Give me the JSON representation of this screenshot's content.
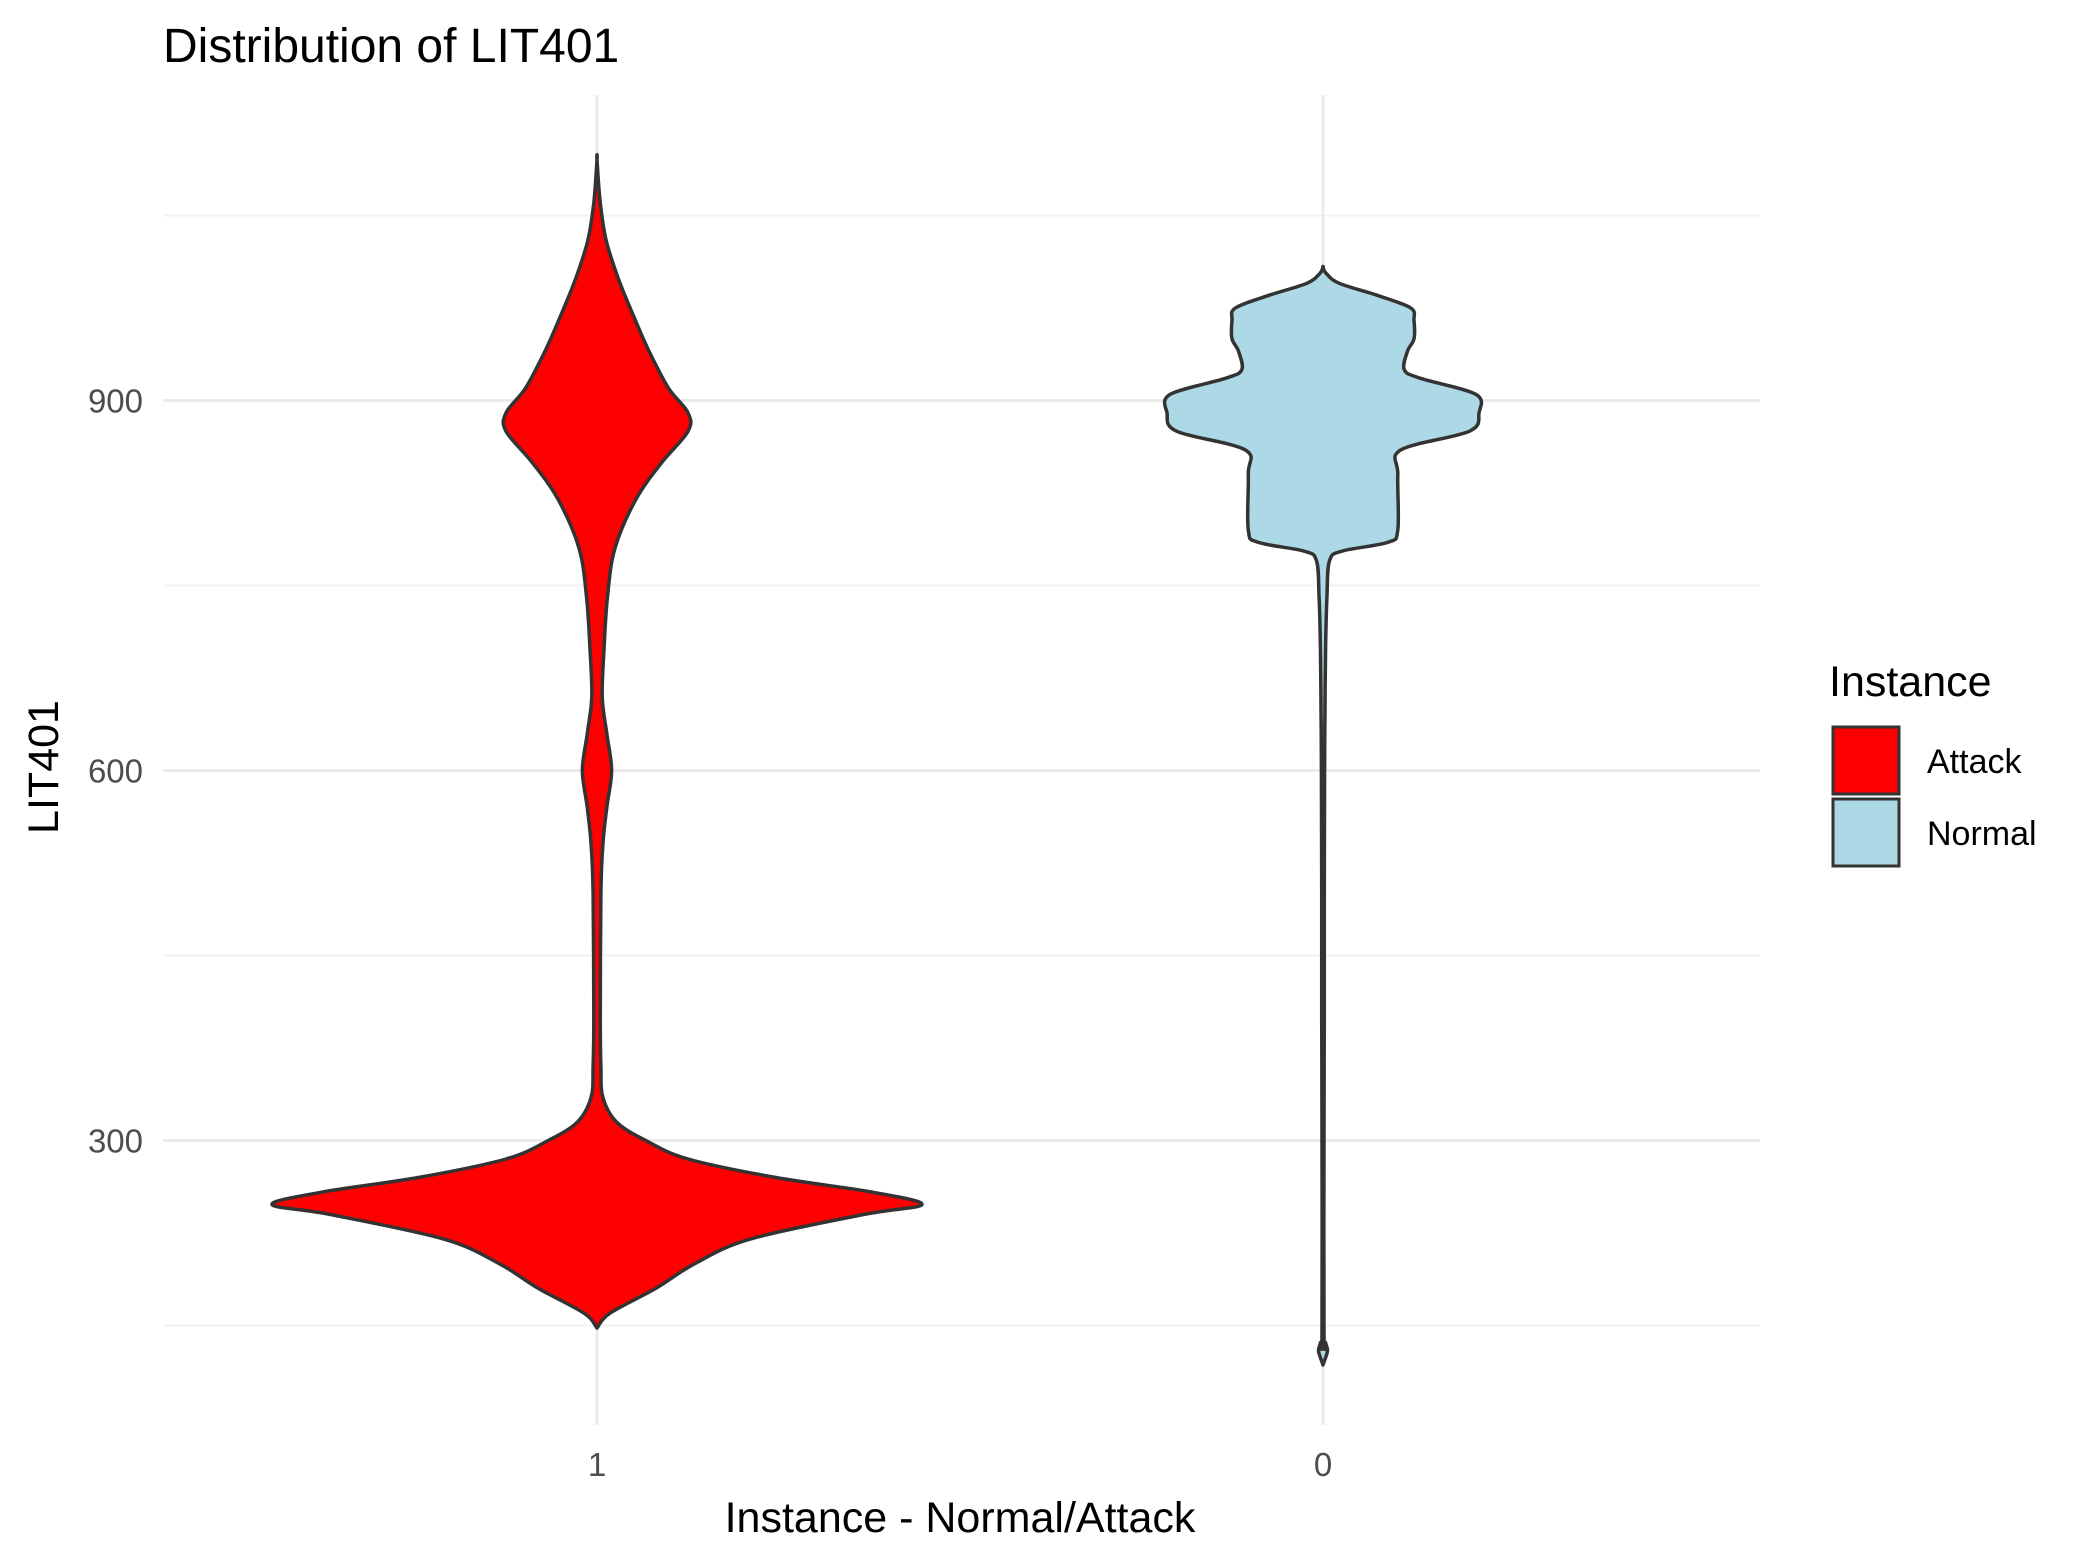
{
  "chart_data": {
    "type": "violin",
    "title": "Distribution of LIT401",
    "xlabel": "Instance - Normal/Attack",
    "ylabel": "LIT401",
    "ylim": [
      75,
      1115
    ],
    "y_ticks": [
      300,
      600,
      900
    ],
    "grid": true,
    "legend": {
      "title": "Instance",
      "position": "right",
      "entries": [
        {
          "label": "Attack",
          "color": "#FF0000"
        },
        {
          "label": "Normal",
          "color": "#ADD8E6"
        }
      ]
    },
    "categories": [
      "1",
      "0"
    ],
    "series": [
      {
        "name": "Attack",
        "category": "1",
        "color": "#FF0000",
        "density_profile": [
          [
            148,
            0.0
          ],
          [
            160,
            0.04
          ],
          [
            180,
            0.18
          ],
          [
            200,
            0.3
          ],
          [
            220,
            0.47
          ],
          [
            240,
            0.82
          ],
          [
            248,
            1.0
          ],
          [
            258,
            0.85
          ],
          [
            270,
            0.55
          ],
          [
            285,
            0.28
          ],
          [
            300,
            0.15
          ],
          [
            315,
            0.06
          ],
          [
            335,
            0.018
          ],
          [
            360,
            0.012
          ],
          [
            400,
            0.01
          ],
          [
            500,
            0.012
          ],
          [
            540,
            0.018
          ],
          [
            570,
            0.03
          ],
          [
            600,
            0.045
          ],
          [
            630,
            0.03
          ],
          [
            660,
            0.016
          ],
          [
            700,
            0.022
          ],
          [
            740,
            0.032
          ],
          [
            780,
            0.055
          ],
          [
            820,
            0.12
          ],
          [
            850,
            0.2
          ],
          [
            875,
            0.28
          ],
          [
            890,
            0.28
          ],
          [
            910,
            0.22
          ],
          [
            940,
            0.16
          ],
          [
            970,
            0.11
          ],
          [
            1000,
            0.064
          ],
          [
            1030,
            0.028
          ],
          [
            1060,
            0.01
          ],
          [
            1095,
            0.0
          ]
        ]
      },
      {
        "name": "Normal",
        "category": "0",
        "color": "#ADD8E6",
        "density_profile": [
          [
            118,
            0.0
          ],
          [
            124,
            0.008
          ],
          [
            130,
            0.014
          ],
          [
            136,
            0.008
          ],
          [
            145,
            0.003
          ],
          [
            300,
            0.003
          ],
          [
            400,
            0.004
          ],
          [
            500,
            0.004
          ],
          [
            600,
            0.005
          ],
          [
            650,
            0.006
          ],
          [
            700,
            0.008
          ],
          [
            740,
            0.012
          ],
          [
            770,
            0.02
          ],
          [
            778,
            0.06
          ],
          [
            785,
            0.2
          ],
          [
            795,
            0.23
          ],
          [
            840,
            0.23
          ],
          [
            860,
            0.24
          ],
          [
            875,
            0.45
          ],
          [
            890,
            0.48
          ],
          [
            905,
            0.47
          ],
          [
            918,
            0.3
          ],
          [
            925,
            0.25
          ],
          [
            940,
            0.26
          ],
          [
            950,
            0.28
          ],
          [
            965,
            0.28
          ],
          [
            975,
            0.27
          ],
          [
            985,
            0.17
          ],
          [
            995,
            0.05
          ],
          [
            1003,
            0.01
          ],
          [
            1008,
            0.0
          ]
        ]
      }
    ]
  }
}
